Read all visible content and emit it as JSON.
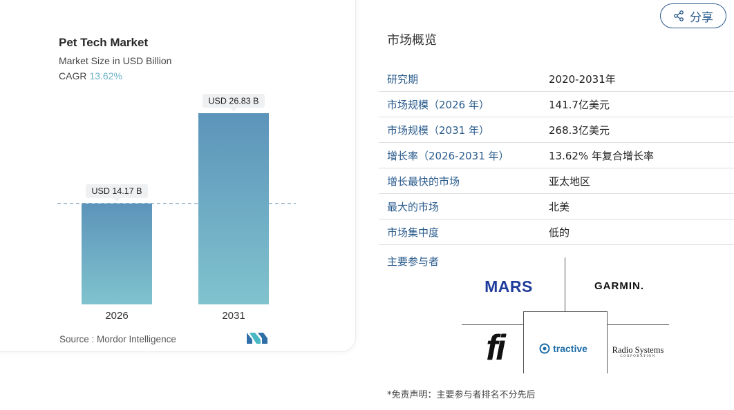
{
  "chart": {
    "title": "Pet Tech Market",
    "subtitle": "Market Size in USD Billion",
    "cagr_label": "CAGR",
    "cagr_value": "13.62%",
    "source": "Source : Mordor Intelligence"
  },
  "chart_data": {
    "type": "bar",
    "title": "Pet Tech Market",
    "subtitle": "Market Size in USD Billion",
    "categories": [
      "2026",
      "2031"
    ],
    "values": [
      14.17,
      26.83
    ],
    "data_labels": [
      "USD 14.17 B",
      "USD 26.83 B"
    ],
    "reference_line": 14.17,
    "colors": {
      "bar_top": "#5c94ba",
      "bar_bottom": "#80c3ce",
      "label_bg": "#eef0f2",
      "reference_line": "#7aa4c4"
    }
  },
  "share": {
    "label": "分享"
  },
  "overview": {
    "title": "市场概览",
    "rows": [
      {
        "key": "研究期",
        "value": "2020-2031年"
      },
      {
        "key": "市场规模（2026 年）",
        "value": "141.7亿美元"
      },
      {
        "key": "市场规模（2031 年）",
        "value": "268.3亿美元"
      },
      {
        "key": "增长率（2026-2031 年）",
        "value": "13.62% 年复合增长率"
      },
      {
        "key": "增长最快的市场",
        "value": "亚太地区"
      },
      {
        "key": "最大的市场",
        "value": "北美"
      },
      {
        "key": "市场集中度",
        "value": "低的"
      }
    ]
  },
  "players": {
    "label": "主要参与者",
    "logos": {
      "mars": "MARS",
      "garmin": "GARMIN.",
      "fi": "fi",
      "tractive": "tractive",
      "radio_main": "Radio Systems",
      "radio_sub": "CORPORATION"
    }
  },
  "disclaimer": "*免责声明：主要参与者排名不分先后",
  "colors": {
    "accent": "#2a5b8c",
    "cagr": "#6db2c8",
    "mars": "#1f3b9b",
    "tractive": "#1d6ca8"
  }
}
